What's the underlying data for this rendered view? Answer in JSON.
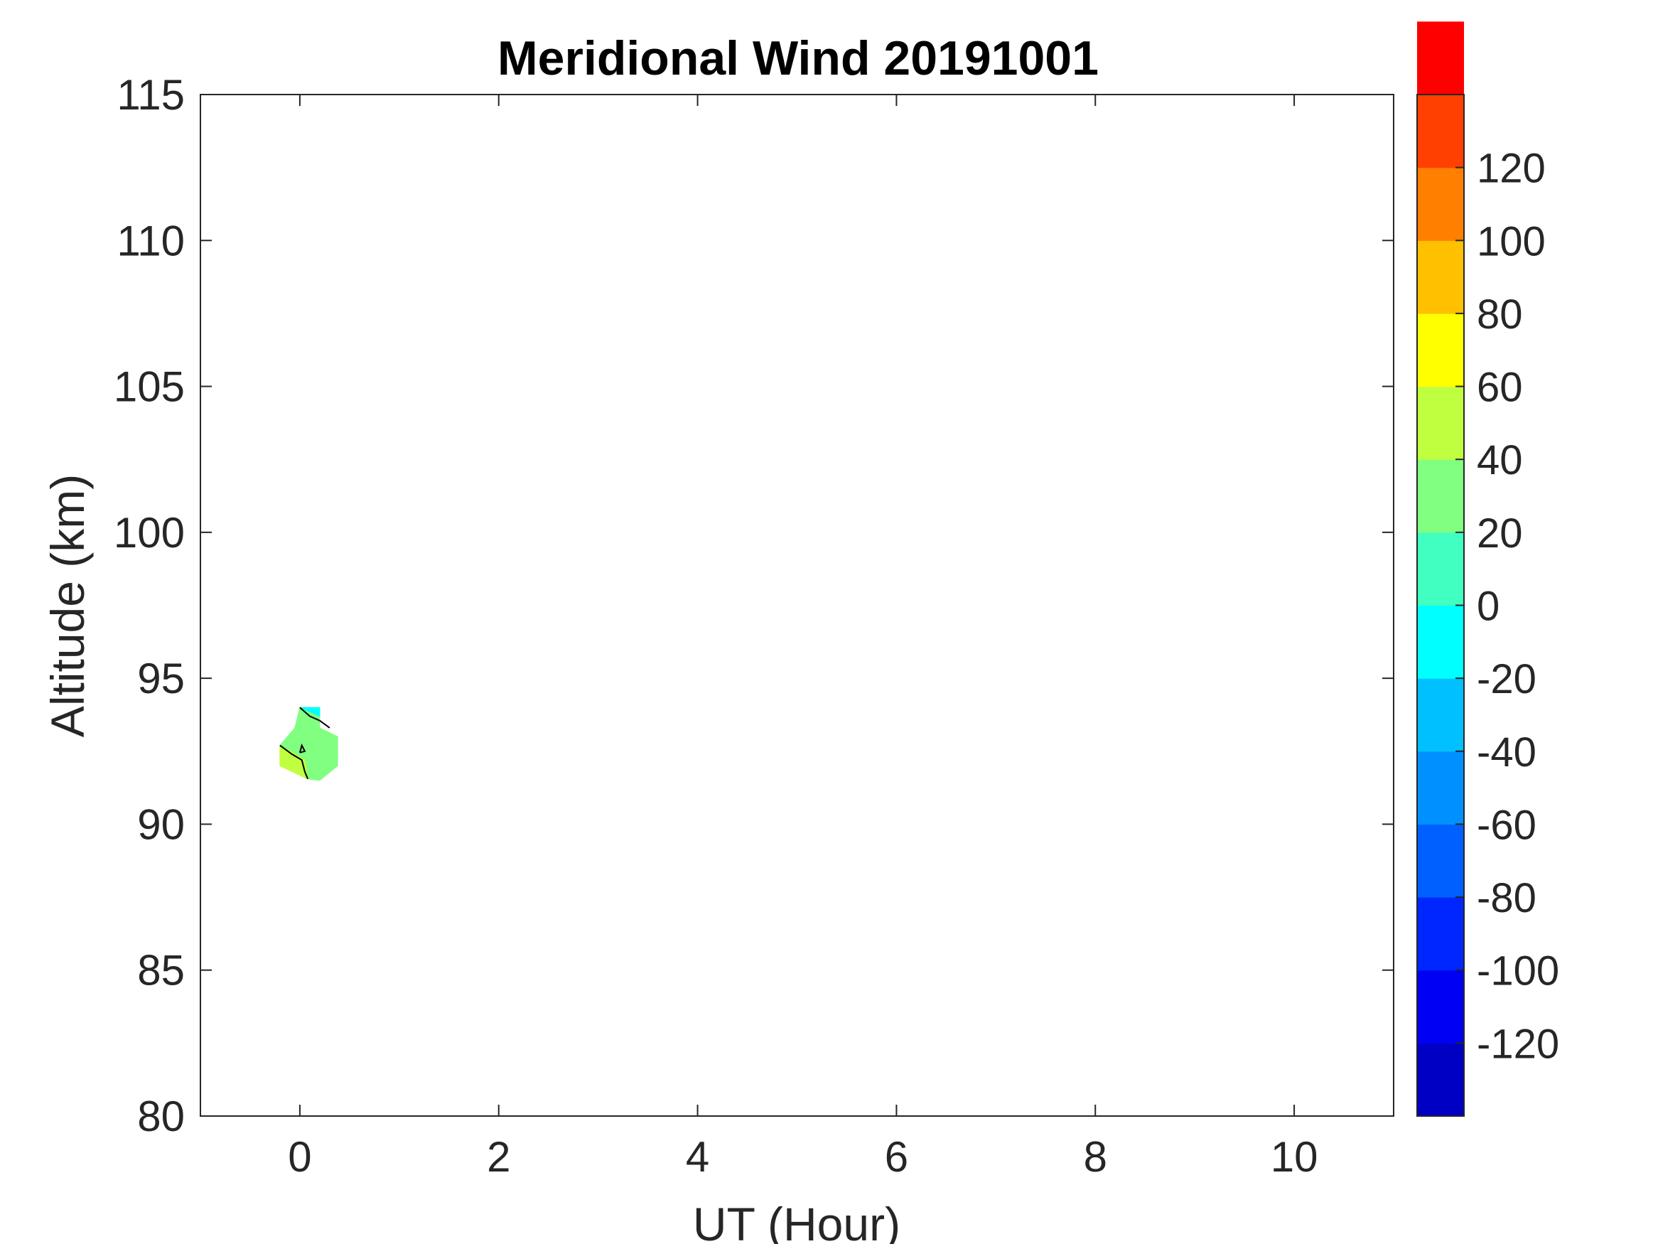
{
  "chart_data": {
    "type": "heatmap",
    "title": "Meridional Wind 20191001",
    "xlabel": "UT (Hour)",
    "ylabel": "Altitude (km)",
    "xlim": [
      -1,
      11
    ],
    "ylim": [
      80,
      115
    ],
    "x_ticks": [
      0,
      2,
      4,
      6,
      8,
      10
    ],
    "y_ticks": [
      80,
      85,
      90,
      95,
      100,
      105,
      110,
      115
    ],
    "grid": false,
    "colorbar": {
      "range": [
        -140,
        140
      ],
      "step": 20,
      "ticks": [
        -120,
        -100,
        -80,
        -60,
        -40,
        -20,
        0,
        20,
        40,
        60,
        80,
        100,
        120
      ],
      "colors": [
        "#0000c4",
        "#0000f4",
        "#0026ff",
        "#0060ff",
        "#0090ff",
        "#00c0ff",
        "#00ffff",
        "#40ffc0",
        "#80ff80",
        "#c0ff40",
        "#ffff00",
        "#ffc000",
        "#ff8000",
        "#ff4000",
        "#ff0000"
      ],
      "colormap": "jet"
    },
    "regions": [
      {
        "value_range": [
          0,
          20
        ],
        "color": "#80ff80",
        "polygon": [
          [
            -0.2,
            92.7
          ],
          [
            -0.05,
            93.3
          ],
          [
            0.0,
            94.0
          ],
          [
            0.2,
            94.0
          ],
          [
            0.2,
            93.3
          ],
          [
            0.38,
            93.0
          ],
          [
            0.38,
            92.0
          ],
          [
            0.2,
            91.5
          ],
          [
            0.08,
            91.55
          ],
          [
            -0.2,
            92.0
          ]
        ]
      },
      {
        "value_range": [
          20,
          40
        ],
        "color": "#c0ff40",
        "polygon": [
          [
            -0.2,
            92.0
          ],
          [
            -0.2,
            92.7
          ],
          [
            0.05,
            92.2
          ],
          [
            0.08,
            91.55
          ]
        ]
      },
      {
        "value_range": [
          -40,
          -20
        ],
        "color": "#00ffff",
        "polygon": [
          [
            0.0,
            94.0
          ],
          [
            0.2,
            94.0
          ],
          [
            0.2,
            93.7
          ]
        ]
      }
    ],
    "contours": [
      [
        [
          -0.2,
          92.7
        ],
        [
          -0.08,
          92.4
        ],
        [
          0.02,
          92.2
        ],
        [
          0.05,
          91.8
        ],
        [
          0.08,
          91.55
        ]
      ],
      [
        [
          0.0,
          94.0
        ],
        [
          0.1,
          93.7
        ],
        [
          0.2,
          93.55
        ],
        [
          0.3,
          93.3
        ]
      ],
      [
        [
          0.0,
          92.45
        ],
        [
          0.02,
          92.7
        ],
        [
          0.05,
          92.5
        ],
        [
          0.0,
          92.45
        ]
      ]
    ]
  }
}
